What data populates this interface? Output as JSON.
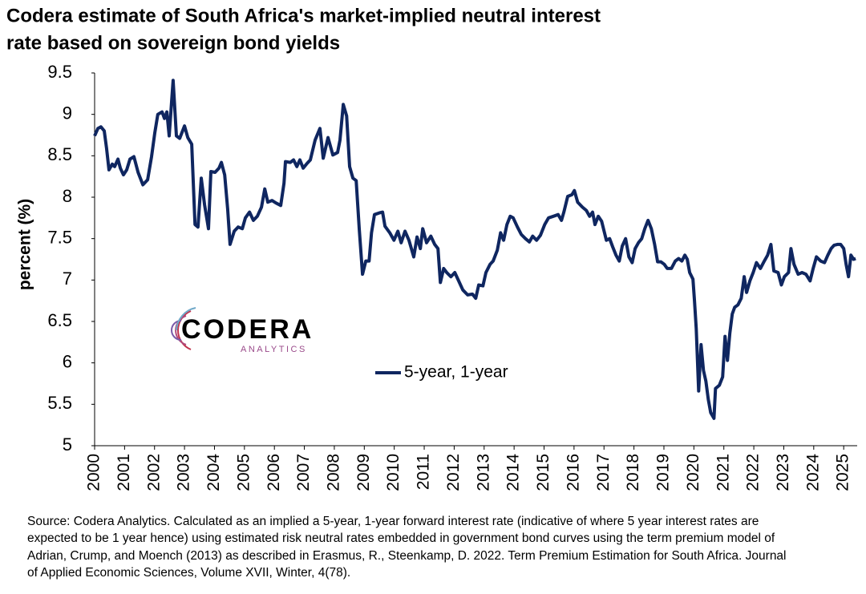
{
  "chart_data": {
    "type": "line",
    "title": [
      "Codera estimate of South Africa's market-implied neutral interest",
      "rate based on sovereign bond yields"
    ],
    "ylabel": "percent (%)",
    "logo": {
      "name": "CODERA",
      "sub": "ANALYTICS"
    },
    "note": [
      "Source: Codera Analytics. Calculated as an implied a 5-year, 1-year forward interest rate (indicative of where 5 year interest rates are",
      "expected to be 1 year hence) using estimated risk neutral rates embedded in government bond curves using the term premium model of",
      "Adrian, Crump, and Moench (2013) as described in Erasmus, R., Steenkamp, D. 2022. Term Premium Estimation for South Africa. Journal",
      "of Applied Economic Sciences, Volume XVII, Winter, 4(78)."
    ],
    "x": [
      2000.0,
      2000.11,
      2000.21,
      2000.32,
      2000.4,
      2000.48,
      2000.59,
      2000.67,
      2000.78,
      2000.86,
      2000.96,
      2001.07,
      2001.18,
      2001.31,
      2001.45,
      2001.61,
      2001.77,
      2001.9,
      2002.01,
      2002.11,
      2002.25,
      2002.33,
      2002.41,
      2002.49,
      2002.62,
      2002.73,
      2002.84,
      2003.0,
      2003.11,
      2003.24,
      2003.35,
      2003.45,
      2003.56,
      2003.67,
      2003.8,
      2003.88,
      2004.02,
      2004.15,
      2004.23,
      2004.34,
      2004.44,
      2004.52,
      2004.66,
      2004.79,
      2004.93,
      2005.03,
      2005.17,
      2005.3,
      2005.43,
      2005.57,
      2005.68,
      2005.78,
      2005.92,
      2006.05,
      2006.21,
      2006.32,
      2006.37,
      2006.53,
      2006.64,
      2006.75,
      2006.85,
      2006.96,
      2007.07,
      2007.2,
      2007.36,
      2007.52,
      2007.63,
      2007.79,
      2007.95,
      2008.11,
      2008.19,
      2008.3,
      2008.41,
      2008.51,
      2008.62,
      2008.73,
      2008.83,
      2008.94,
      2009.05,
      2009.16,
      2009.24,
      2009.34,
      2009.5,
      2009.61,
      2009.69,
      2009.85,
      2009.99,
      2010.12,
      2010.23,
      2010.36,
      2010.49,
      2010.65,
      2010.76,
      2010.87,
      2010.95,
      2011.08,
      2011.22,
      2011.35,
      2011.46,
      2011.54,
      2011.65,
      2011.75,
      2011.89,
      2012.02,
      2012.15,
      2012.29,
      2012.45,
      2012.61,
      2012.72,
      2012.82,
      2012.96,
      2013.06,
      2013.2,
      2013.3,
      2013.44,
      2013.55,
      2013.65,
      2013.76,
      2013.87,
      2013.97,
      2014.11,
      2014.24,
      2014.38,
      2014.51,
      2014.62,
      2014.75,
      2014.88,
      2015.02,
      2015.15,
      2015.31,
      2015.47,
      2015.58,
      2015.66,
      2015.79,
      2015.93,
      2016.01,
      2016.12,
      2016.28,
      2016.41,
      2016.52,
      2016.62,
      2016.7,
      2016.81,
      2016.92,
      2017.08,
      2017.19,
      2017.29,
      2017.4,
      2017.51,
      2017.61,
      2017.72,
      2017.83,
      2017.94,
      2018.04,
      2018.15,
      2018.26,
      2018.36,
      2018.47,
      2018.58,
      2018.69,
      2018.79,
      2018.9,
      2019.01,
      2019.11,
      2019.25,
      2019.38,
      2019.49,
      2019.6,
      2019.7,
      2019.78,
      2019.86,
      2019.97,
      2020.02,
      2020.08,
      2020.16,
      2020.24,
      2020.32,
      2020.4,
      2020.48,
      2020.56,
      2020.67,
      2020.72,
      2020.85,
      2020.96,
      2021.04,
      2021.12,
      2021.2,
      2021.28,
      2021.36,
      2021.47,
      2021.58,
      2021.68,
      2021.76,
      2021.87,
      2021.98,
      2022.09,
      2022.22,
      2022.35,
      2022.46,
      2022.57,
      2022.67,
      2022.81,
      2022.92,
      2023.02,
      2023.16,
      2023.24,
      2023.34,
      2023.48,
      2023.61,
      2023.74,
      2023.88,
      2023.98,
      2024.09,
      2024.23,
      2024.36,
      2024.47,
      2024.58,
      2024.68,
      2024.79,
      2024.9,
      2025.0,
      2025.08,
      2025.16,
      2025.24,
      2025.33,
      2025.4
    ],
    "series": [
      {
        "name": "5-year, 1-year",
        "color": "#0f2660",
        "values": [
          8.74,
          8.83,
          8.85,
          8.8,
          8.59,
          8.33,
          8.4,
          8.37,
          8.46,
          8.35,
          8.27,
          8.33,
          8.46,
          8.49,
          8.3,
          8.15,
          8.21,
          8.49,
          8.78,
          9.0,
          9.03,
          8.95,
          9.03,
          8.74,
          9.41,
          8.74,
          8.71,
          8.86,
          8.72,
          8.64,
          7.67,
          7.64,
          8.23,
          7.91,
          7.62,
          8.31,
          8.3,
          8.35,
          8.42,
          8.27,
          7.86,
          7.43,
          7.59,
          7.64,
          7.62,
          7.75,
          7.82,
          7.72,
          7.77,
          7.88,
          8.1,
          7.94,
          7.96,
          7.93,
          7.9,
          8.17,
          8.43,
          8.42,
          8.45,
          8.37,
          8.45,
          8.35,
          8.4,
          8.45,
          8.69,
          8.83,
          8.47,
          8.72,
          8.51,
          8.54,
          8.69,
          9.12,
          8.98,
          8.37,
          8.23,
          8.2,
          7.62,
          7.07,
          7.23,
          7.23,
          7.57,
          7.79,
          7.81,
          7.82,
          7.65,
          7.57,
          7.48,
          7.59,
          7.45,
          7.59,
          7.48,
          7.28,
          7.52,
          7.38,
          7.62,
          7.45,
          7.53,
          7.43,
          7.38,
          6.97,
          7.14,
          7.09,
          7.04,
          7.09,
          6.99,
          6.88,
          6.82,
          6.83,
          6.78,
          6.94,
          6.93,
          7.09,
          7.19,
          7.23,
          7.36,
          7.57,
          7.48,
          7.67,
          7.77,
          7.75,
          7.64,
          7.55,
          7.5,
          7.46,
          7.53,
          7.48,
          7.54,
          7.67,
          7.75,
          7.77,
          7.79,
          7.72,
          7.82,
          8.01,
          8.03,
          8.08,
          7.94,
          7.88,
          7.84,
          7.77,
          7.82,
          7.67,
          7.77,
          7.71,
          7.48,
          7.5,
          7.4,
          7.3,
          7.23,
          7.41,
          7.5,
          7.28,
          7.21,
          7.38,
          7.45,
          7.5,
          7.62,
          7.72,
          7.62,
          7.43,
          7.22,
          7.22,
          7.19,
          7.14,
          7.14,
          7.23,
          7.26,
          7.23,
          7.3,
          7.25,
          7.09,
          7.01,
          6.75,
          6.41,
          5.66,
          6.22,
          5.91,
          5.78,
          5.56,
          5.4,
          5.33,
          5.69,
          5.73,
          5.83,
          6.32,
          6.03,
          6.36,
          6.59,
          6.67,
          6.7,
          6.78,
          7.04,
          6.85,
          6.99,
          7.09,
          7.21,
          7.14,
          7.23,
          7.3,
          7.43,
          7.11,
          7.09,
          6.94,
          7.04,
          7.09,
          7.38,
          7.19,
          7.07,
          7.09,
          7.07,
          6.99,
          7.14,
          7.28,
          7.23,
          7.21,
          7.3,
          7.38,
          7.42,
          7.43,
          7.43,
          7.38,
          7.19,
          7.04,
          7.3,
          7.25,
          7.26
        ]
      }
    ],
    "xlim": [
      2000,
      2025.45
    ],
    "xticks": [
      2000,
      2001,
      2002,
      2003,
      2004,
      2005,
      2006,
      2007,
      2008,
      2009,
      2010,
      2011,
      2012,
      2013,
      2014,
      2015,
      2016,
      2017,
      2018,
      2019,
      2020,
      2021,
      2022,
      2023,
      2024,
      2025
    ],
    "ylim": [
      5,
      9.5
    ],
    "yticks": [
      5,
      5.5,
      6,
      6.5,
      7,
      7.5,
      8,
      8.5,
      9,
      9.5
    ],
    "grid": false,
    "legend": "center"
  }
}
